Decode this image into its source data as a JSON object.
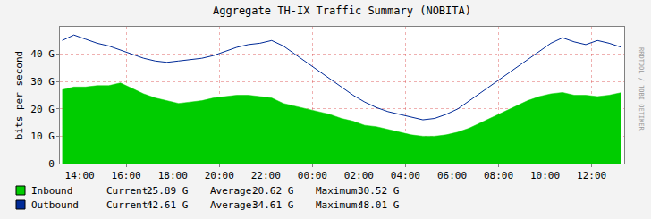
{
  "chart_data": {
    "type": "line",
    "title": "Aggregate TH-IX Traffic Summary (NOBITA)",
    "y_label": "bits per second",
    "annotations": [
      "RRDTOOL / TOBI OETIKER"
    ],
    "x": [
      13.25,
      13.75,
      14.25,
      14.75,
      15.25,
      15.75,
      16.25,
      16.75,
      17.25,
      17.75,
      18.25,
      18.75,
      19.25,
      19.75,
      20.25,
      20.75,
      21.25,
      21.75,
      22.25,
      22.75,
      23.25,
      23.75,
      24.25,
      24.75,
      25.25,
      25.75,
      26.25,
      26.75,
      27.25,
      27.75,
      28.25,
      28.75,
      29.25,
      29.75,
      30.25,
      30.75,
      31.25,
      31.75,
      32.25,
      32.75,
      33.25,
      33.75,
      34.25,
      34.75,
      35.25,
      35.75,
      36.25,
      36.75,
      37.25
    ],
    "xlim": [
      13.15,
      37.4
    ],
    "xticks": [
      {
        "value": 14,
        "label": "14:00"
      },
      {
        "value": 16,
        "label": "16:00"
      },
      {
        "value": 18,
        "label": "18:00"
      },
      {
        "value": 20,
        "label": "20:00"
      },
      {
        "value": 22,
        "label": "22:00"
      },
      {
        "value": 24,
        "label": "00:00"
      },
      {
        "value": 26,
        "label": "02:00"
      },
      {
        "value": 28,
        "label": "04:00"
      },
      {
        "value": 30,
        "label": "06:00"
      },
      {
        "value": 32,
        "label": "08:00"
      },
      {
        "value": 34,
        "label": "10:00"
      },
      {
        "value": 36,
        "label": "12:00"
      }
    ],
    "ylim": [
      0,
      50
    ],
    "yticks": [
      0,
      {
        "value": 10,
        "label": "10 G"
      },
      {
        "value": 20,
        "label": "20 G"
      },
      {
        "value": 30,
        "label": "30 G"
      },
      {
        "value": 40,
        "label": "40 G"
      }
    ],
    "grid": true,
    "series": [
      {
        "name": "Inbound",
        "type": "area",
        "color": "#00cc00",
        "values": [
          27,
          28,
          28,
          28.5,
          28.5,
          29.5,
          27.5,
          25.5,
          24,
          23,
          22,
          22.5,
          23,
          24,
          24.5,
          25,
          25,
          24.5,
          24,
          22,
          21,
          20,
          19,
          18,
          16.5,
          15.5,
          14,
          13.5,
          12.5,
          11.5,
          10.5,
          10,
          10,
          10.5,
          11.5,
          13,
          15,
          17,
          19,
          21,
          23,
          24.5,
          25.5,
          26,
          25,
          25,
          24.5,
          25,
          25.9
        ],
        "stats": [
          {
            "label": "Current:",
            "value": 25.89,
            "value_label": "25.89 G"
          },
          {
            "label": "Average:",
            "value": 20.62,
            "value_label": "20.62 G"
          },
          {
            "label": "Maximum:",
            "value": 30.52,
            "value_label": "30.52 G"
          }
        ]
      },
      {
        "name": "Outbound",
        "type": "line",
        "color": "#002a97",
        "values": [
          45,
          47,
          45.5,
          44,
          43,
          41.5,
          40,
          38.5,
          37.5,
          37,
          37.5,
          38,
          38.5,
          39.5,
          41,
          42.5,
          43.5,
          44,
          45,
          43,
          40,
          37,
          34,
          31,
          28,
          25,
          22.5,
          20.5,
          19,
          18,
          17,
          16,
          16.5,
          18,
          20,
          23,
          26,
          29,
          32,
          35,
          38,
          41,
          44,
          46,
          44.5,
          43.5,
          45,
          44,
          42.6
        ],
        "stats": [
          {
            "label": "Current:",
            "value": 42.61,
            "value_label": "42.61 G"
          },
          {
            "label": "Average:",
            "value": 34.61,
            "value_label": "34.61 G"
          },
          {
            "label": "Maximum:",
            "value": 48.01,
            "value_label": "48.01 G"
          }
        ]
      }
    ]
  }
}
